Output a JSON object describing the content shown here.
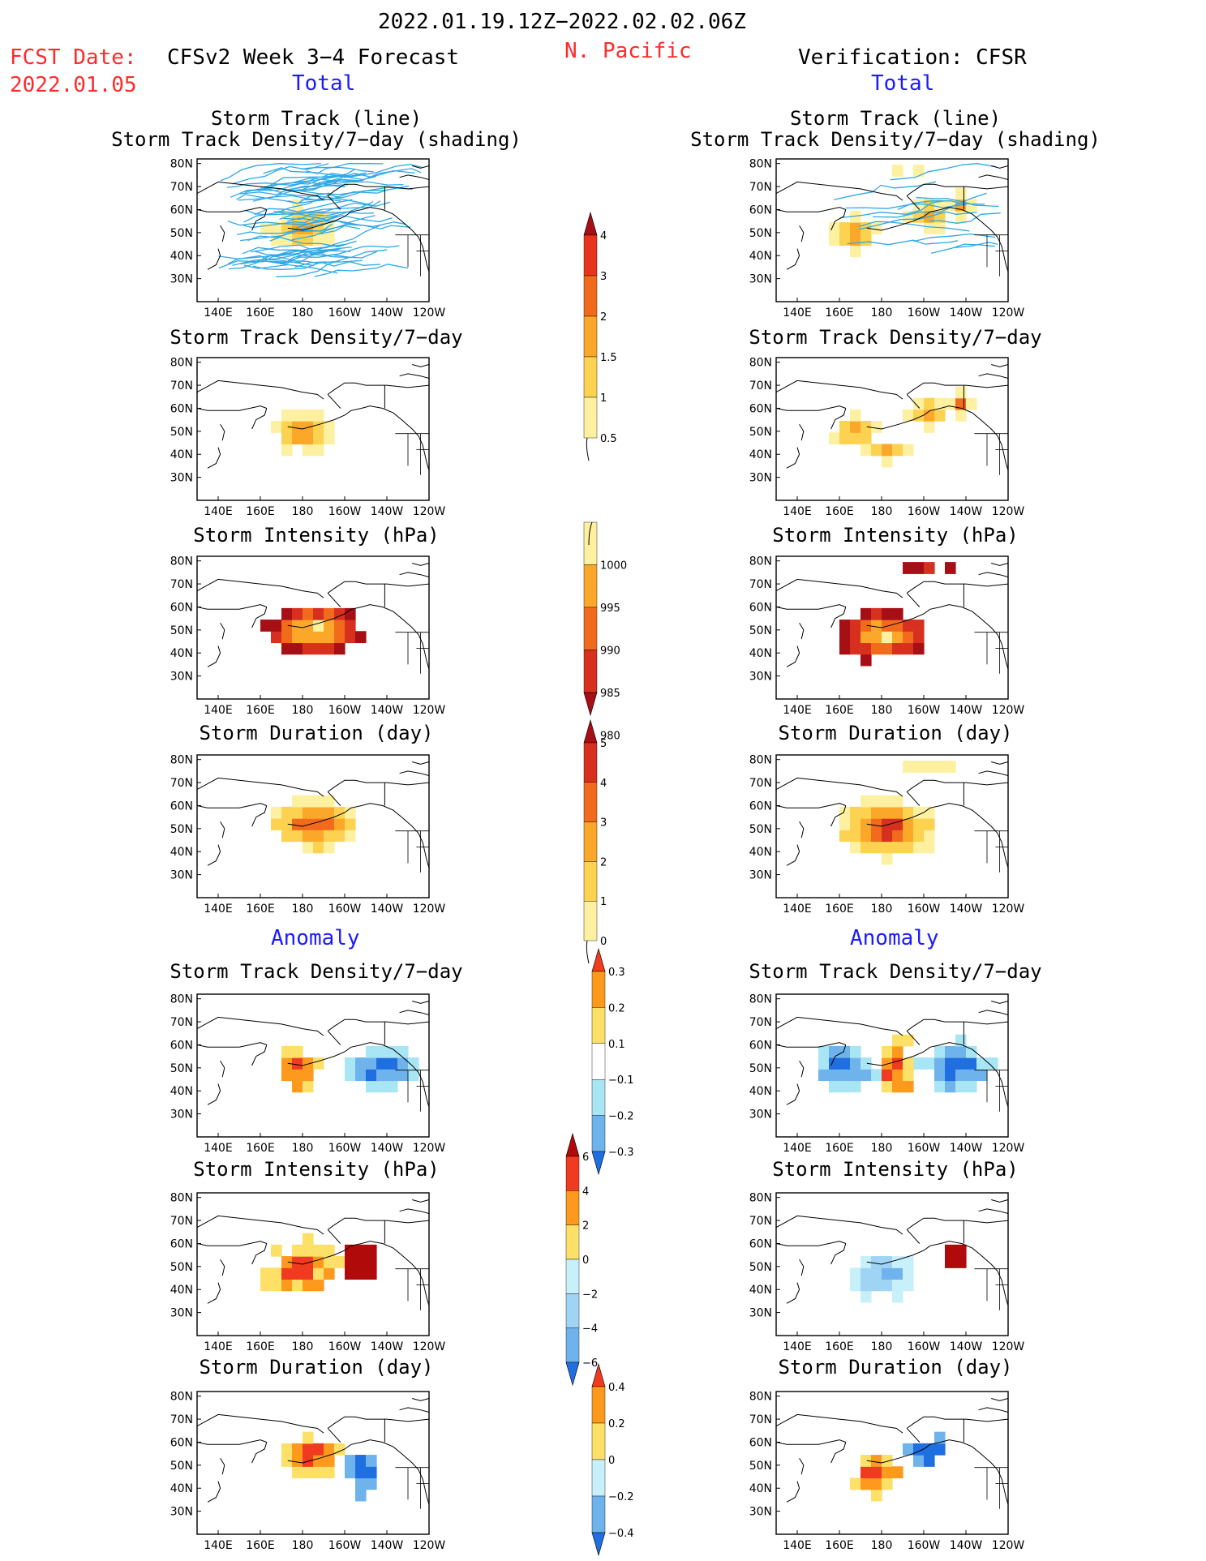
{
  "header": {
    "date_range": "2022.01.19.12Z−2022.02.02.06Z",
    "fcst_label": "FCST Date:",
    "fcst_date": "2022.01.05",
    "left_title": "CFSv2 Week 3−4 Forecast",
    "region": "N. Pacific",
    "right_title": "Verification: CFSR",
    "left_total": "Total",
    "right_total": "Total",
    "left_anomaly": "Anomaly",
    "right_anomaly": "Anomaly"
  },
  "panel_titles": {
    "p1_line1": "Storm Track (line)",
    "p1_line2": "Storm Track Density/7−day (shading)",
    "density": "Storm Track Density/7−day",
    "intensity": "Storm Intensity (hPa)",
    "duration": "Storm Duration (day)"
  },
  "axes": {
    "lat_labels": [
      "80N",
      "70N",
      "60N",
      "50N",
      "40N",
      "30N"
    ],
    "lon_labels": [
      "140E",
      "160E",
      "180",
      "160W",
      "140W",
      "120W"
    ]
  },
  "colorbars": {
    "density": {
      "labels": [
        "4",
        "3",
        "2",
        "1.5",
        "1",
        "0.5"
      ],
      "colors": [
        "#a50f15",
        "#e8341c",
        "#f26b1d",
        "#fba82a",
        "#fcd250",
        "#fdf0a0"
      ]
    },
    "intensity": {
      "labels": [
        "1000",
        "995",
        "990",
        "985",
        "980"
      ],
      "colors": [
        "#fdf0a0",
        "#fba82a",
        "#f26b1d",
        "#d7301f",
        "#a50f15"
      ]
    },
    "duration": {
      "labels": [
        "5",
        "4",
        "3",
        "2",
        "1",
        "0"
      ],
      "colors": [
        "#a50f15",
        "#d7301f",
        "#f26b1d",
        "#fba82a",
        "#fcd250",
        "#fdf0a0"
      ]
    },
    "anom_density": {
      "labels": [
        "0.3",
        "0.2",
        "0.1",
        "−0.1",
        "−0.2",
        "−0.3"
      ],
      "colors": [
        "#f03b20",
        "#fd9a1e",
        "#fde067",
        "#ffffff",
        "#a8e6f5",
        "#6fb3ec",
        "#1f6fe0"
      ]
    },
    "anom_intensity": {
      "labels": [
        "6",
        "4",
        "2",
        "0",
        "−2",
        "−4",
        "−6"
      ],
      "colors": [
        "#b10a0a",
        "#f03b20",
        "#fd9a1e",
        "#fde067",
        "#c8f0fb",
        "#a0d4f5",
        "#6fb3ec",
        "#1f6fe0"
      ]
    },
    "anom_duration": {
      "labels": [
        "0.4",
        "0.2",
        "0",
        "−0.2",
        "−0.4"
      ],
      "colors": [
        "#f03b20",
        "#fd9a1e",
        "#fde067",
        "#c8f0fb",
        "#6fb3ec",
        "#1f6fe0"
      ]
    }
  },
  "colors": {
    "storm_track_line": "#2ea8e6",
    "land_outline": "#000000",
    "title_red": "#ff2a2a",
    "label_blue": "#1a1aff"
  }
}
